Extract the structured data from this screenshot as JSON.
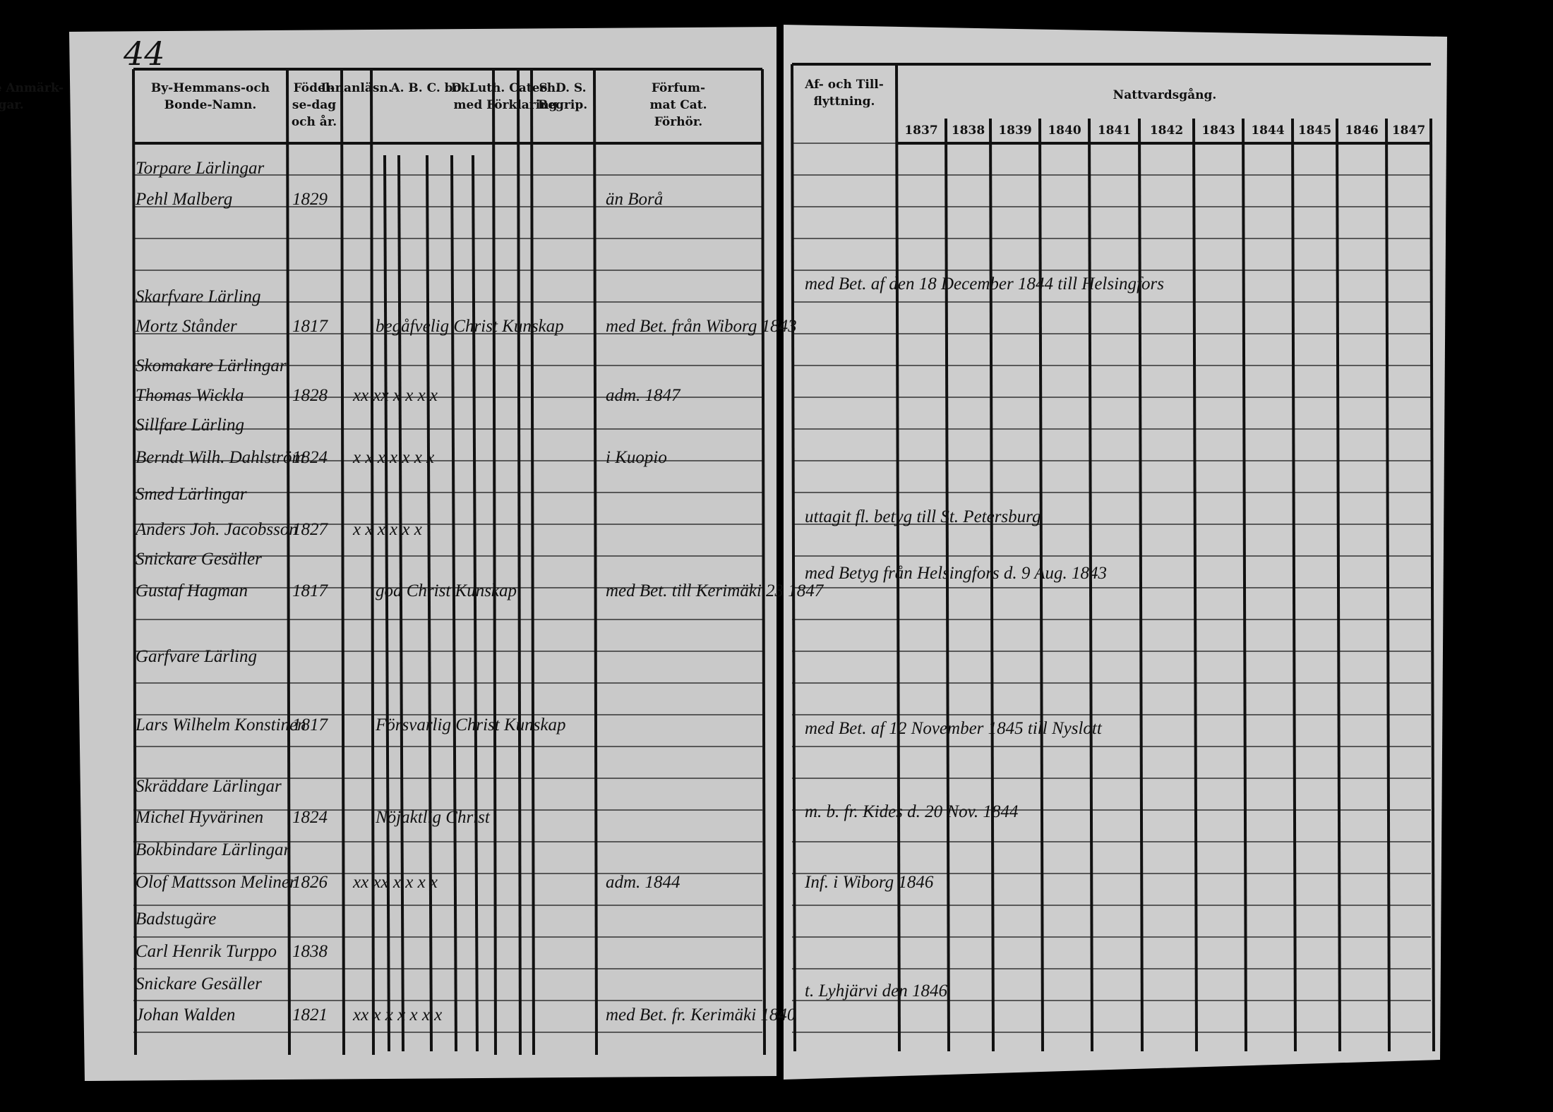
{
  "page_number": "44",
  "left_headers": [
    {
      "lines": [
        "By-Hemmans-och",
        "Bonde-Namn."
      ]
    },
    {
      "lines": [
        "Födel-",
        "se-dag",
        "och år."
      ]
    },
    {
      "lines": [
        "Innanläsn."
      ]
    },
    {
      "lines": [
        "A. B. C. bok."
      ]
    },
    {
      "lines": [
        "D. Luth. Catech.",
        "med Förklaring"
      ]
    },
    {
      "lines": [
        "S. D. S.",
        "Begrip."
      ]
    },
    {
      "lines": [
        "Förfum-",
        "mat Cat.",
        "Förhör."
      ]
    },
    {
      "lines": [
        "Tillfällige Anmärk-",
        "ningar."
      ]
    }
  ],
  "right_headers": {
    "moving": [
      "Af- och Till-",
      "flyttning."
    ],
    "communion": "Nattvardsgång.",
    "years": [
      "1837",
      "1838",
      "1839",
      "1840",
      "1841",
      "1842",
      "1843",
      "1844",
      "1845",
      "1846",
      "1847"
    ]
  },
  "entries": [
    {
      "trade": "Torpare Lärlingar",
      "name": "Pehl Malberg",
      "birth": "1829",
      "remark": "än Borå"
    },
    {
      "trade": "Skarfvare Lärling",
      "name": "Mortz Stånder",
      "birth": "1817",
      "notes": "begåfvelig Christ Kunskap",
      "remark": "med Bet. från Wiborg 1843"
    },
    {
      "trade": "Skomakare Lärlingar",
      "name": "Thomas Wickla",
      "birth": "1828",
      "marks": "xx  xx  x  x  x  x",
      "remark": "adm. 1847"
    },
    {
      "trade": "Sillfare Lärling",
      "name": "Berndt Wilh. Dahlström",
      "birth": "1824",
      "marks": "x  x  x  x  x  x  x",
      "remark": "i Kuopio"
    },
    {
      "trade": "Smed Lärlingar",
      "name": "Anders Joh. Jacobsson",
      "birth": "1827",
      "marks": "x  x  x  x  x  x"
    },
    {
      "trade": "Snickare Gesäller",
      "name": "Gustaf Hagman",
      "birth": "1817",
      "notes": "god Christ Kunskap",
      "remark": "med Bet. till Kerimäki 23 1847"
    },
    {
      "trade": "Garfvare Lärling",
      "name": "Lars Wilhelm Konstinen",
      "birth": "1817",
      "notes": "Försvarlig Christ Kunskap"
    },
    {
      "trade": "Skräddare Lärlingar",
      "name": "Michel Hyvärinen",
      "birth": "1824",
      "notes": "Nöjaktlig Christ"
    },
    {
      "trade": "Bokbindare Lärlingar",
      "name": "Olof Mattsson Meliner",
      "birth": "1826",
      "marks": "xx  xx  x  x  x  x",
      "remark": "adm. 1844"
    },
    {
      "trade": "Badstugäre",
      "name": "Carl Henrik Turppo",
      "birth": "1838"
    },
    {
      "trade": "Snickare Gesäller",
      "name": "Johan Walden",
      "birth": "1821",
      "marks": "xx  x  x  x  x  x  x",
      "remark": "med Bet. fr. Kerimäki 1840"
    }
  ],
  "moves": [
    "med Bet. af den 18 December 1844 till Helsingfors",
    "uttagit fl. betyg till St. Petersburg",
    "med Betyg från Helsingfors d. 9 Aug. 1843",
    "med Bet. af 12 November 1845 till Nyslott",
    "m. b. fr. Kides d. 20 Nov. 1844",
    "Inf. i Wiborg 1846",
    "t. Lyhjärvi den 1846"
  ]
}
